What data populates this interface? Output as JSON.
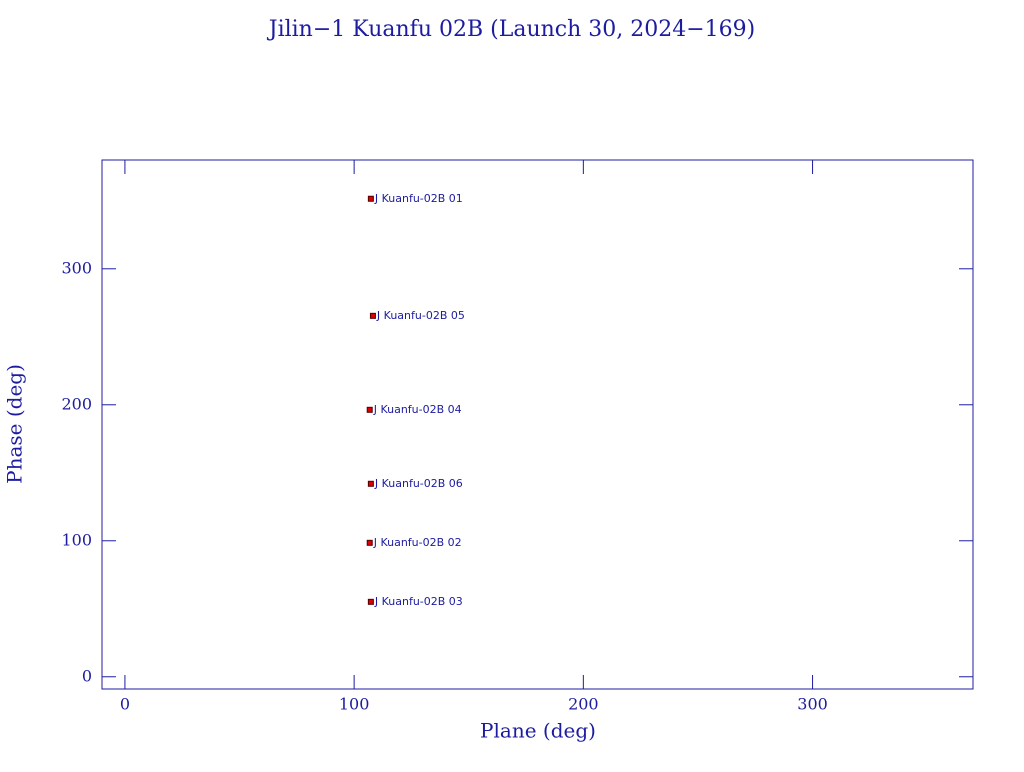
{
  "chart_data": {
    "type": "scatter",
    "title": "Jilin−1 Kuanfu 02B (Launch 30, 2024−169)",
    "xlabel": "Plane (deg)",
    "ylabel": "Phase (deg)",
    "x": [
      107.3,
      108.2,
      106.8,
      107.3,
      106.8,
      107.3
    ],
    "values": [
      351.5,
      265.4,
      196.3,
      141.9,
      98.5,
      55.1
    ],
    "point_labels": [
      "J Kuanfu-02B 01",
      "J Kuanfu-02B 05",
      "J Kuanfu-02B 04",
      "J Kuanfu-02B 06",
      "J Kuanfu-02B 02",
      "J Kuanfu-02B 03"
    ],
    "color": "#dd0000",
    "xlim": [
      -10,
      370
    ],
    "ylim": [
      -9,
      380
    ],
    "xticks": [
      0,
      100,
      200,
      300
    ],
    "yticks": [
      0,
      100,
      200,
      300
    ]
  }
}
